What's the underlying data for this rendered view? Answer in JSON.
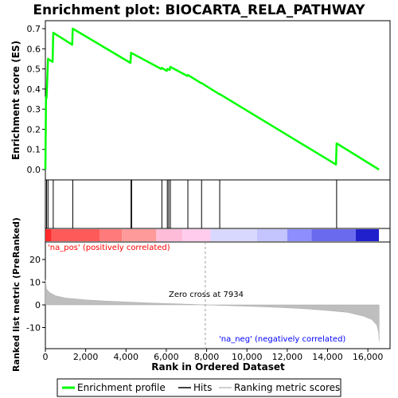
{
  "chart_data": {
    "type": "line",
    "title": "Enrichment plot: BIOCARTA_RELA_PATHWAY",
    "es_panel": {
      "ylabel": "Enrichment score (ES)",
      "ylim": [
        0,
        0.75
      ],
      "yticks": [
        0.0,
        0.1,
        0.2,
        0.3,
        0.4,
        0.5,
        0.6,
        0.7
      ],
      "ytick_labels": [
        "0.0",
        "0.1",
        "0.2",
        "0.3",
        "0.4",
        "0.5",
        "0.6",
        "0.7"
      ],
      "color": "#00ff00",
      "points": [
        [
          0,
          0.0
        ],
        [
          30,
          0.36
        ],
        [
          60,
          0.355
        ],
        [
          130,
          0.55
        ],
        [
          360,
          0.535
        ],
        [
          390,
          0.68
        ],
        [
          1330,
          0.62
        ],
        [
          1360,
          0.7
        ],
        [
          4220,
          0.53
        ],
        [
          4250,
          0.58
        ],
        [
          5750,
          0.5
        ],
        [
          5780,
          0.505
        ],
        [
          6020,
          0.49
        ],
        [
          6050,
          0.5
        ],
        [
          6170,
          0.495
        ],
        [
          6200,
          0.51
        ],
        [
          7040,
          0.465
        ],
        [
          7070,
          0.47
        ],
        [
          7720,
          0.43
        ],
        [
          7750,
          0.43
        ],
        [
          8620,
          0.375
        ],
        [
          8650,
          0.375
        ],
        [
          14420,
          0.025
        ],
        [
          14450,
          0.13
        ],
        [
          16550,
          0.0
        ]
      ]
    },
    "hits": [
      60,
      130,
      390,
      1360,
      4250,
      4280,
      5780,
      6050,
      6120,
      6200,
      7070,
      7750,
      8650,
      14450
    ],
    "ranked_panel": {
      "ylabel": "Ranked list metric (PreRanked)",
      "ylim": [
        -16,
        27
      ],
      "yticks": [
        -10,
        0,
        10,
        20
      ],
      "ytick_labels": [
        "-10",
        "0",
        "10",
        "20"
      ],
      "fill_color": "#bebebe",
      "profile": [
        [
          0,
          11
        ],
        [
          60,
          7
        ],
        [
          200,
          5.5
        ],
        [
          500,
          4
        ],
        [
          1000,
          3
        ],
        [
          2000,
          2.2
        ],
        [
          3000,
          1.7
        ],
        [
          4000,
          1.3
        ],
        [
          5000,
          0.9
        ],
        [
          6000,
          0.6
        ],
        [
          7000,
          0.3
        ],
        [
          7934,
          0.0
        ],
        [
          9000,
          -0.3
        ],
        [
          10000,
          -0.6
        ],
        [
          11000,
          -0.9
        ],
        [
          12000,
          -1.3
        ],
        [
          13000,
          -1.8
        ],
        [
          14000,
          -2.5
        ],
        [
          15000,
          -3.3
        ],
        [
          15800,
          -5
        ],
        [
          16200,
          -6.5
        ],
        [
          16450,
          -9
        ],
        [
          16530,
          -12
        ],
        [
          16560,
          -16
        ]
      ],
      "zero_cross_label": "Zero cross at 7934",
      "zero_cross": 7934,
      "pos_label": "'na_pos' (positively correlated)",
      "neg_label": "'na_neg' (negatively correlated)",
      "pos_color": "#ff0000",
      "neg_color": "#0000ff"
    },
    "heat_bar": {
      "segments": [
        {
          "x0": 0,
          "x1": 300,
          "color": "#ff2a2a"
        },
        {
          "x0": 300,
          "x1": 2700,
          "color": "#ff5a5a"
        },
        {
          "x0": 2700,
          "x1": 3800,
          "color": "#ff7a7a"
        },
        {
          "x0": 3800,
          "x1": 5500,
          "color": "#ff9a9a"
        },
        {
          "x0": 5500,
          "x1": 6800,
          "color": "#ffbcd8"
        },
        {
          "x0": 6800,
          "x1": 8200,
          "color": "#ffccee"
        },
        {
          "x0": 8200,
          "x1": 10500,
          "color": "#d8d8ff"
        },
        {
          "x0": 10500,
          "x1": 12000,
          "color": "#c4c4ff"
        },
        {
          "x0": 12000,
          "x1": 13200,
          "color": "#8e8eff"
        },
        {
          "x0": 13200,
          "x1": 15400,
          "color": "#6a6aee"
        },
        {
          "x0": 15400,
          "x1": 16550,
          "color": "#2020cc"
        }
      ]
    },
    "xaxis": {
      "label": "Rank in Ordered Dataset",
      "xlim": [
        0,
        17100
      ],
      "ticks": [
        0,
        2000,
        4000,
        6000,
        8000,
        10000,
        12000,
        14000,
        16000
      ],
      "tick_labels": [
        "0",
        "2,000",
        "4,000",
        "6,000",
        "8,000",
        "10,000",
        "12,000",
        "14,000",
        "16,000"
      ]
    },
    "legend": {
      "placement": "bottom",
      "items": [
        {
          "label": "Enrichment profile",
          "color": "#00ff00"
        },
        {
          "label": "Hits",
          "color": "#000000"
        },
        {
          "label": "Ranking metric scores",
          "color": "#bebebe"
        }
      ]
    }
  }
}
